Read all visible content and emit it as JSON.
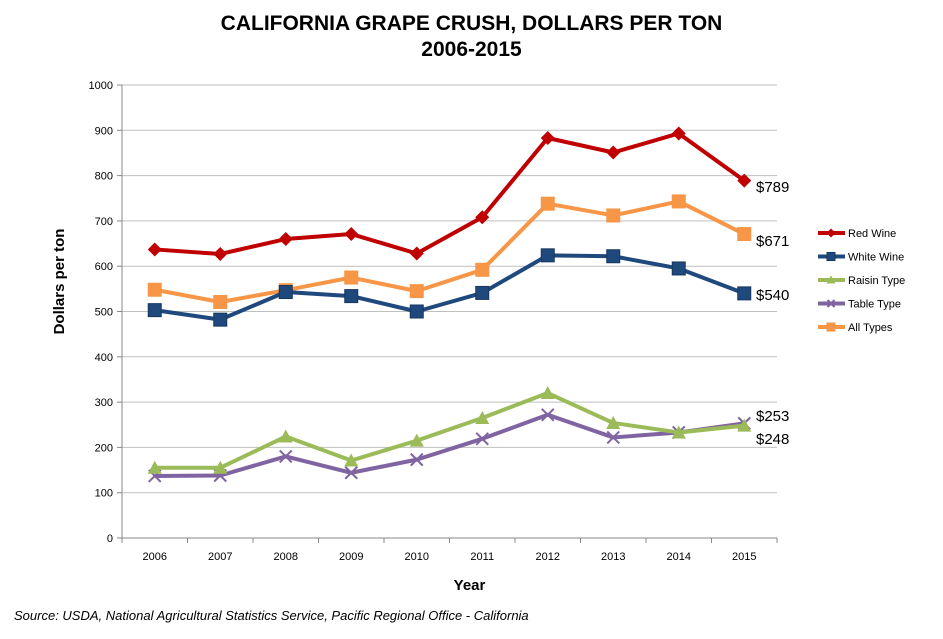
{
  "chart_data": {
    "type": "line",
    "title": "CALIFORNIA GRAPE CRUSH, DOLLARS PER TON",
    "subtitle": "2006-2015",
    "xlabel": "Year",
    "ylabel": "Dollars per ton",
    "ylim": [
      0,
      1000
    ],
    "yticks": [
      0,
      100,
      200,
      300,
      400,
      500,
      600,
      700,
      800,
      900,
      1000
    ],
    "grid": "horizontal",
    "legend_position": "right",
    "categories": [
      "2006",
      "2007",
      "2008",
      "2009",
      "2010",
      "2011",
      "2012",
      "2013",
      "2014",
      "2015"
    ],
    "series": [
      {
        "name": "Red Wine",
        "color": "#c00000",
        "marker": "diamond",
        "values": [
          637,
          627,
          660,
          671,
          628,
          708,
          883,
          851,
          893,
          789
        ]
      },
      {
        "name": "White Wine",
        "color": "#1f497d",
        "marker": "square",
        "values": [
          503,
          482,
          543,
          534,
          500,
          541,
          624,
          622,
          595,
          540
        ]
      },
      {
        "name": "Raisin Type",
        "color": "#9bbb59",
        "marker": "triangle",
        "values": [
          155,
          155,
          224,
          171,
          215,
          265,
          320,
          254,
          233,
          248
        ]
      },
      {
        "name": "Table Type",
        "color": "#8064a2",
        "marker": "x",
        "values": [
          137,
          138,
          180,
          144,
          173,
          219,
          272,
          222,
          233,
          253
        ]
      },
      {
        "name": "All Types",
        "color": "#f79646",
        "marker": "square",
        "values": [
          548,
          521,
          547,
          575,
          545,
          592,
          738,
          712,
          743,
          671
        ]
      }
    ],
    "annotations": [
      {
        "text": "$789",
        "value": 789
      },
      {
        "text": "$671",
        "value": 671
      },
      {
        "text": "$540",
        "value": 540
      },
      {
        "text": "$253",
        "value": 253
      },
      {
        "text": "$248",
        "value": 248
      }
    ]
  },
  "source": "Source: USDA, National Agricultural Statistics Service, Pacific Regional Office - California"
}
